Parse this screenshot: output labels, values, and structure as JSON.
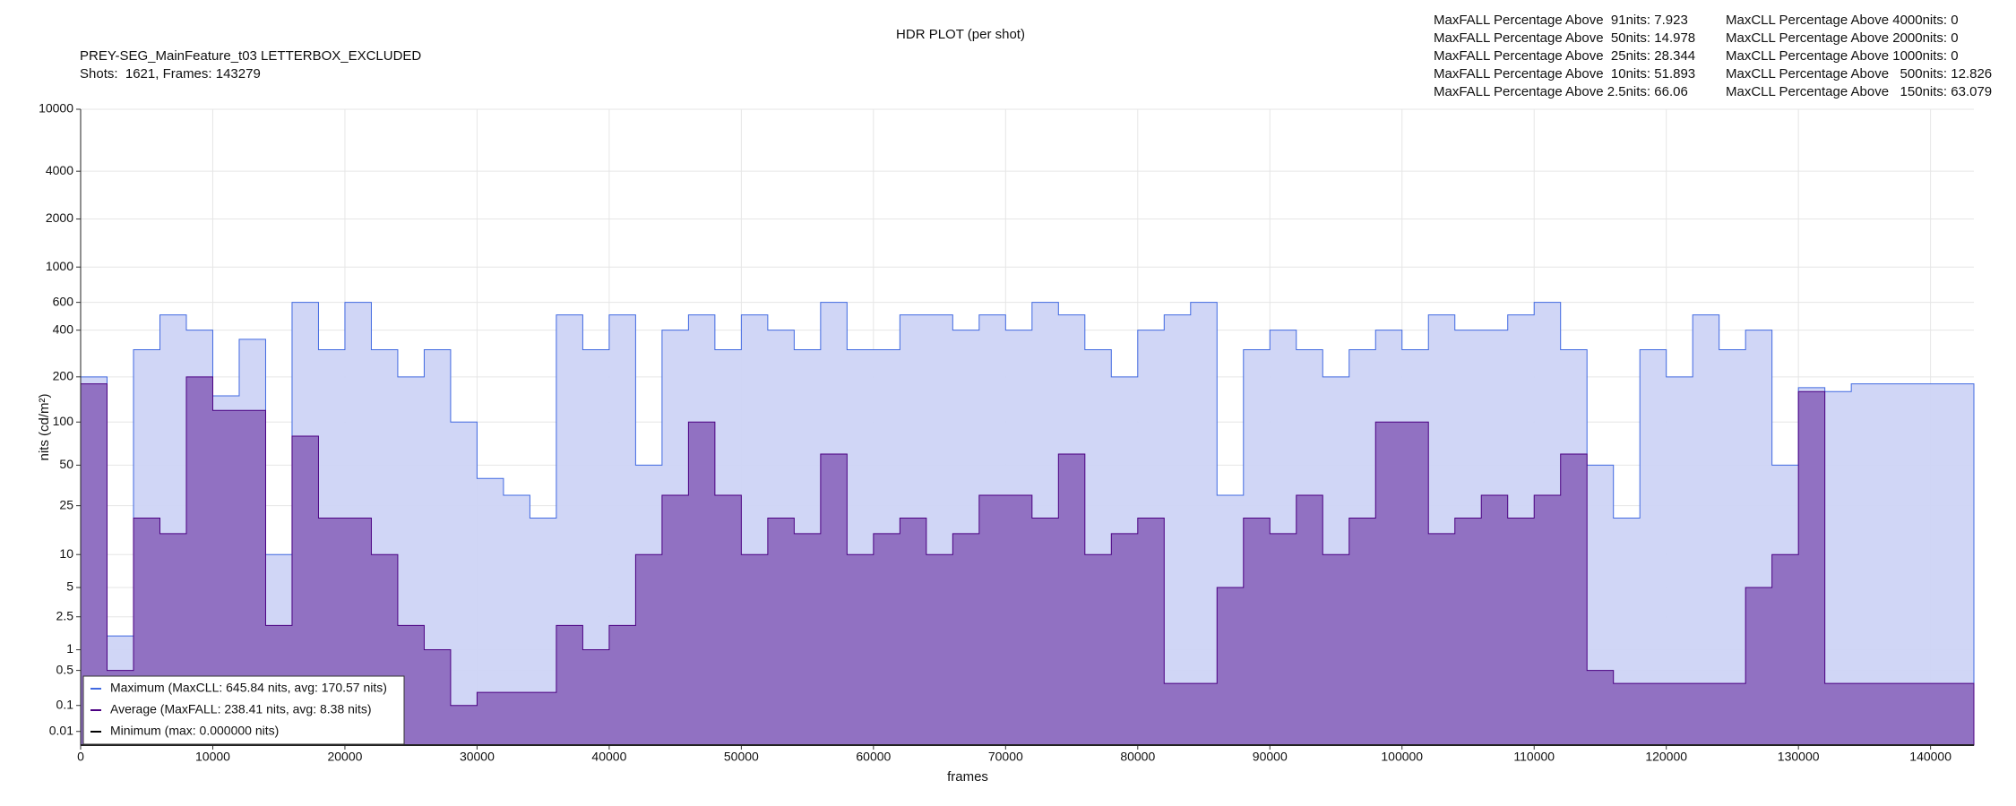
{
  "chart_data": {
    "type": "step-area",
    "title": "HDR PLOT (per shot)",
    "subtitle": [
      "PREY-SEG_MainFeature_t03 LETTERBOX_EXCLUDED",
      "Shots:  1621, Frames: 143279"
    ],
    "stats": {
      "maxfall": [
        "MaxFALL Percentage Above  91nits: 7.923",
        "MaxFALL Percentage Above  50nits: 14.978",
        "MaxFALL Percentage Above  25nits: 28.344",
        "MaxFALL Percentage Above  10nits: 51.893",
        "MaxFALL Percentage Above 2.5nits: 66.06"
      ],
      "maxcll": [
        "MaxCLL Percentage Above 4000nits: 0",
        "MaxCLL Percentage Above 2000nits: 0",
        "MaxCLL Percentage Above 1000nits: 0",
        "MaxCLL Percentage Above   500nits: 12.826",
        "MaxCLL Percentage Above   150nits: 63.079"
      ]
    },
    "x_label": "frames",
    "y_label": "nits (cd/m²)",
    "yscale": "pq",
    "grid": true,
    "legend": "lower left",
    "xlim": [
      0,
      143279
    ],
    "xticks": [
      0,
      10000,
      20000,
      30000,
      40000,
      50000,
      60000,
      70000,
      80000,
      90000,
      100000,
      110000,
      120000,
      130000,
      140000
    ],
    "ylim": [
      0,
      10000
    ],
    "yticks": [
      0.01,
      0.1,
      0.5,
      1,
      2.5,
      5,
      10,
      25,
      50,
      100,
      200,
      400,
      600,
      1000,
      2000,
      4000,
      10000
    ],
    "x": [
      0,
      2000,
      4000,
      6000,
      8000,
      10000,
      12000,
      14000,
      16000,
      18000,
      20000,
      22000,
      24000,
      26000,
      28000,
      30000,
      32000,
      34000,
      36000,
      38000,
      40000,
      42000,
      44000,
      46000,
      48000,
      50000,
      52000,
      54000,
      56000,
      58000,
      60000,
      62000,
      64000,
      66000,
      68000,
      70000,
      72000,
      74000,
      76000,
      78000,
      80000,
      82000,
      84000,
      86000,
      88000,
      90000,
      92000,
      94000,
      96000,
      98000,
      100000,
      102000,
      104000,
      106000,
      108000,
      110000,
      112000,
      114000,
      116000,
      118000,
      120000,
      122000,
      124000,
      126000,
      128000,
      130000,
      132000,
      134000,
      136000,
      138000,
      140000,
      142000
    ],
    "series": [
      {
        "name": "Maximum (MaxCLL: 645.84 nits, avg: 170.57 nits)",
        "color": "#4169e1",
        "fill": "#cdd4f6",
        "values": [
          200,
          1.5,
          300,
          500,
          400,
          150,
          350,
          10,
          600,
          300,
          600,
          300,
          200,
          300,
          100,
          40,
          30,
          20,
          500,
          300,
          500,
          50,
          400,
          500,
          300,
          500,
          400,
          300,
          600,
          300,
          300,
          500,
          500,
          400,
          500,
          400,
          600,
          500,
          300,
          200,
          400,
          500,
          600,
          30,
          300,
          400,
          300,
          200,
          300,
          400,
          300,
          500,
          400,
          400,
          500,
          600,
          300,
          50,
          20,
          300,
          200,
          500,
          300,
          400,
          50,
          170,
          160,
          180,
          180,
          180,
          180,
          180
        ]
      },
      {
        "name": "Average (MaxFALL: 238.41 nits, avg: 8.38 nits)",
        "color": "#4b0082",
        "fill": "#8d6bbf",
        "values": [
          180,
          0.5,
          20,
          15,
          200,
          120,
          120,
          2,
          80,
          20,
          20,
          10,
          2,
          1,
          0.1,
          0.2,
          0.2,
          0.2,
          2,
          1,
          2,
          10,
          30,
          100,
          30,
          10,
          20,
          15,
          60,
          10,
          15,
          20,
          10,
          15,
          30,
          30,
          20,
          60,
          10,
          15,
          20,
          0.3,
          0.3,
          5,
          20,
          15,
          30,
          10,
          20,
          100,
          100,
          15,
          20,
          30,
          20,
          30,
          60,
          0.5,
          0.3,
          0.3,
          0.3,
          0.3,
          0.3,
          5,
          10,
          160,
          0.3,
          0.3,
          0.3,
          0.3,
          0.3,
          0.3
        ]
      },
      {
        "name": "Minimum (max: 0.000000 nits)",
        "color": "#000000",
        "fill": "none",
        "values": [
          0,
          0,
          0,
          0,
          0,
          0,
          0,
          0,
          0,
          0,
          0,
          0,
          0,
          0,
          0,
          0,
          0,
          0,
          0,
          0,
          0,
          0,
          0,
          0,
          0,
          0,
          0,
          0,
          0,
          0,
          0,
          0,
          0,
          0,
          0,
          0,
          0,
          0,
          0,
          0,
          0,
          0,
          0,
          0,
          0,
          0,
          0,
          0,
          0,
          0,
          0,
          0,
          0,
          0,
          0,
          0,
          0,
          0,
          0,
          0,
          0,
          0,
          0,
          0,
          0,
          0,
          0,
          0,
          0,
          0,
          0,
          0
        ]
      }
    ]
  }
}
